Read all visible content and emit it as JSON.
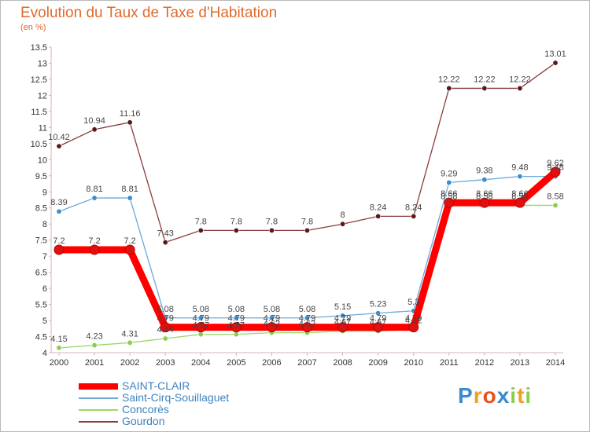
{
  "title": "Evolution du Taux de Taxe d'Habitation",
  "subtitle": "(en %)",
  "brand": "Proxiti",
  "brand_letters": [
    "P",
    "r",
    "o",
    "x",
    "i",
    "t",
    "i"
  ],
  "chart_data": {
    "type": "line",
    "x": [
      "2000",
      "2001",
      "2002",
      "2003",
      "2004",
      "2005",
      "2006",
      "2007",
      "2008",
      "2009",
      "2010",
      "2011",
      "2012",
      "2013",
      "2014"
    ],
    "ylim": [
      4,
      13.5
    ],
    "yticks": [
      "4",
      "4.5",
      "5",
      "5.5",
      "6",
      "6.5",
      "7",
      "7.5",
      "8",
      "8.5",
      "9",
      "9.5",
      "10",
      "10.5",
      "11",
      "11.5",
      "12",
      "12.5",
      "13",
      "13.5"
    ],
    "grid": false,
    "legend_position": "bottom-left",
    "series": [
      {
        "name": "SAINT-CLAIR",
        "color": "#ff0000",
        "marker": "#e01010",
        "values": [
          7.2,
          7.2,
          7.2,
          4.79,
          4.79,
          4.79,
          4.79,
          4.79,
          4.79,
          4.79,
          4.79,
          8.66,
          8.66,
          8.66,
          9.62
        ],
        "labels": [
          "7.2",
          "7.2",
          "7.2",
          "4.79",
          "4.79",
          "4.79",
          "4.79",
          "4.79",
          "4.79",
          "4.79",
          "4.79",
          "8.66",
          "8.66",
          "8.66",
          "9.62"
        ]
      },
      {
        "name": "Saint-Cirq-Souillaguet",
        "color": "#6aa9d8",
        "marker": "#3a8cd0",
        "values": [
          8.39,
          8.81,
          8.81,
          5.08,
          5.08,
          5.08,
          5.08,
          5.08,
          5.15,
          5.23,
          5.3,
          9.29,
          9.38,
          9.48,
          9.48
        ],
        "labels": [
          "8.39",
          "8.81",
          "8.81",
          "5.08",
          "5.08",
          "5.08",
          "5.08",
          "5.08",
          "5.15",
          "5.23",
          "5.3",
          "9.29",
          "9.38",
          "9.48",
          "9.48"
        ]
      },
      {
        "name": "Concorès",
        "color": "#9bd867",
        "marker": "#8ccc4e",
        "values": [
          4.15,
          4.23,
          4.31,
          4.44,
          4.57,
          4.57,
          4.62,
          4.62,
          4.67,
          4.67,
          4.72,
          8.58,
          8.58,
          8.58,
          8.58
        ],
        "labels": [
          "4.15",
          "4.23",
          "4.31",
          "4.44",
          "4.57",
          "4.57",
          "4.62",
          "4.62",
          "4.67",
          "4.67",
          "4.72",
          "8.58",
          "8.58",
          "8.58",
          "8.58"
        ]
      },
      {
        "name": "Gourdon",
        "color": "#8a3d3d",
        "marker": "#5a1818",
        "values": [
          10.42,
          10.94,
          11.16,
          7.43,
          7.8,
          7.8,
          7.8,
          7.8,
          8,
          8.24,
          8.24,
          12.22,
          12.22,
          12.22,
          13.01
        ],
        "labels": [
          "10.42",
          "10.94",
          "11.16",
          "7.43",
          "7.8",
          "7.8",
          "7.8",
          "7.8",
          "8",
          "8.24",
          "8.24",
          "12.22",
          "12.22",
          "12.22",
          "13.01"
        ]
      }
    ]
  },
  "legend": [
    {
      "label": "SAINT-CLAIR",
      "color": "#ff0000",
      "thick": true
    },
    {
      "label": "Saint-Cirq-Souillaguet",
      "color": "#6aa9d8",
      "thick": false
    },
    {
      "label": "Concorès",
      "color": "#9bd867",
      "thick": false
    },
    {
      "label": "Gourdon",
      "color": "#8a3d3d",
      "thick": false
    }
  ],
  "colors": {
    "title": "#e06a2c",
    "legend_text": "#3f82c0",
    "axis": "#d8b0b0",
    "label": "#444444"
  }
}
